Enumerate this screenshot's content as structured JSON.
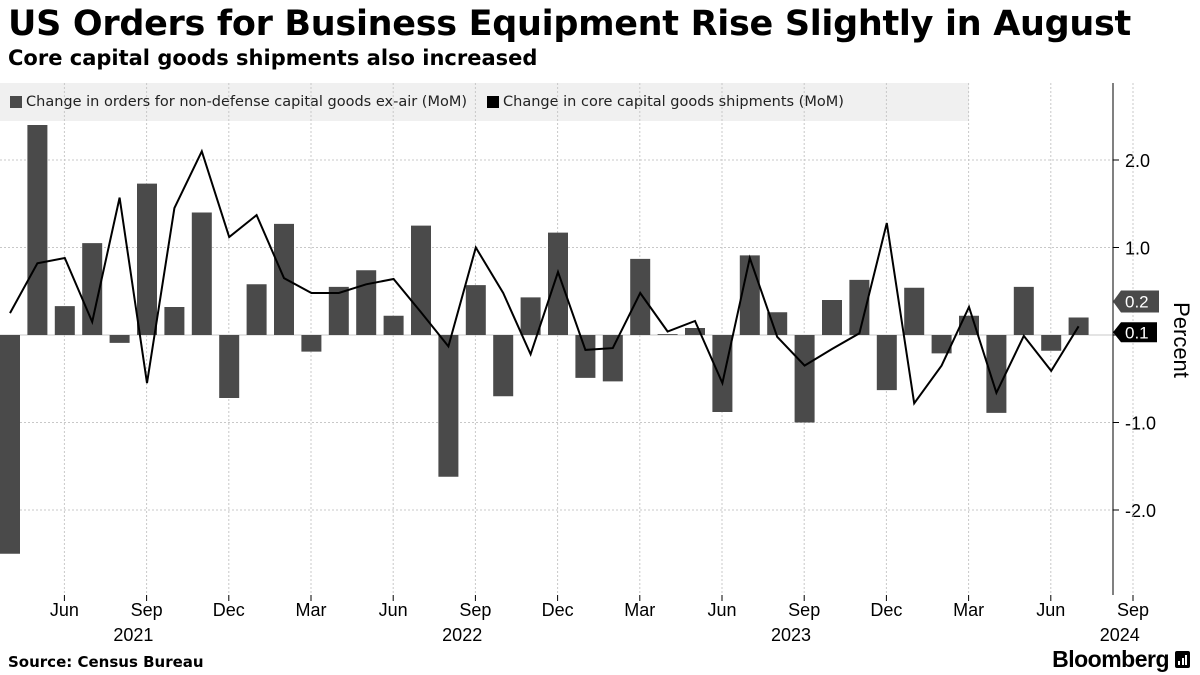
{
  "header": {
    "title": "US Orders for Business Equipment Rise Slightly in August",
    "subtitle": "Core capital goods shipments also increased"
  },
  "legend": {
    "items": [
      {
        "label": "Change in orders for non-defense capital goods ex-air (MoM)",
        "color": "#4a4a4a"
      },
      {
        "label": "Change in core capital goods shipments (MoM)",
        "color": "#000000"
      }
    ]
  },
  "footer": {
    "source": "Source:  Census Bureau",
    "brand": "Bloomberg",
    "brand_icon": "bloomberg-bars-icon"
  },
  "colors": {
    "bar": "#4a4a4a",
    "line": "#000000",
    "grid": "#c8c8c8",
    "legend_bg": "#f0f0f0"
  },
  "chart_data": {
    "type": "bar",
    "title": "US Orders for Business Equipment Rise Slightly in August",
    "subtitle": "Core capital goods shipments also increased",
    "ylabel": "Percent",
    "xlabel": "",
    "ylim": [
      -2.8,
      2.8
    ],
    "y_ticks": [
      "-2.0",
      "-1.0",
      "0.0",
      "1.0",
      "2.0"
    ],
    "y_tick_values": [
      -2.0,
      -1.0,
      0.0,
      1.0,
      2.0
    ],
    "grid": true,
    "categories": [
      "May 2021",
      "Jun 2021",
      "Jul 2021",
      "Aug 2021",
      "Sep 2021",
      "Oct 2021",
      "Nov 2021",
      "Dec 2021",
      "Jan 2022",
      "Feb 2022",
      "Mar 2022",
      "Apr 2022",
      "May 2022",
      "Jun 2022",
      "Jul 2022",
      "Aug 2022",
      "Sep 2022",
      "Oct 2022",
      "Nov 2022",
      "Dec 2022",
      "Jan 2023",
      "Feb 2023",
      "Mar 2023",
      "Apr 2023",
      "May 2023",
      "Jun 2023",
      "Jul 2023",
      "Aug 2023",
      "Sep 2023",
      "Oct 2023",
      "Nov 2023",
      "Dec 2023",
      "Jan 2024",
      "Feb 2024",
      "Mar 2024",
      "Apr 2024",
      "May 2024",
      "Jun 2024",
      "Jul 2024",
      "Aug 2024"
    ],
    "x_tick_labels": [
      {
        "month": "Jun",
        "index": 1,
        "year": "2021"
      },
      {
        "month": "Sep",
        "index": 4
      },
      {
        "month": "Dec",
        "index": 7
      },
      {
        "month": "Mar",
        "index": 10
      },
      {
        "month": "Jun",
        "index": 13,
        "year": "2022"
      },
      {
        "month": "Sep",
        "index": 16
      },
      {
        "month": "Dec",
        "index": 19
      },
      {
        "month": "Mar",
        "index": 22
      },
      {
        "month": "Jun",
        "index": 25,
        "year": "2023"
      },
      {
        "month": "Sep",
        "index": 28
      },
      {
        "month": "Dec",
        "index": 31
      },
      {
        "month": "Mar",
        "index": 34
      },
      {
        "month": "Jun",
        "index": 37,
        "year": "2024"
      },
      {
        "month": "Sep",
        "index": 40
      }
    ],
    "series": [
      {
        "name": "Change in orders for non-defense capital goods ex-air (MoM)",
        "type": "bar",
        "values": [
          -2.5,
          2.4,
          0.33,
          1.05,
          -0.09,
          1.73,
          0.32,
          1.4,
          -0.72,
          0.58,
          1.27,
          -0.19,
          0.55,
          0.74,
          0.22,
          1.25,
          -1.62,
          0.57,
          -0.7,
          0.43,
          1.17,
          -0.49,
          -0.53,
          0.87,
          0.01,
          0.08,
          -0.88,
          0.91,
          0.26,
          -1.0,
          0.4,
          0.63,
          -0.63,
          0.54,
          -0.21,
          0.22,
          -0.89,
          0.55,
          -0.18,
          0.2
        ]
      },
      {
        "name": "Change in core capital goods shipments (MoM)",
        "type": "line",
        "values": [
          0.25,
          0.82,
          0.88,
          0.15,
          1.57,
          -0.55,
          1.45,
          2.1,
          1.12,
          1.37,
          0.65,
          0.48,
          0.48,
          0.58,
          0.64,
          0.26,
          -0.13,
          1.0,
          0.48,
          -0.22,
          0.72,
          -0.17,
          -0.15,
          0.48,
          0.04,
          0.16,
          -0.55,
          0.88,
          -0.02,
          -0.35,
          -0.16,
          0.02,
          1.28,
          -0.78,
          -0.35,
          0.32,
          -0.66,
          -0.01,
          -0.41,
          0.1
        ]
      }
    ],
    "end_labels": [
      {
        "series": 0,
        "text": "0.2"
      },
      {
        "series": 1,
        "text": "0.1"
      }
    ]
  }
}
